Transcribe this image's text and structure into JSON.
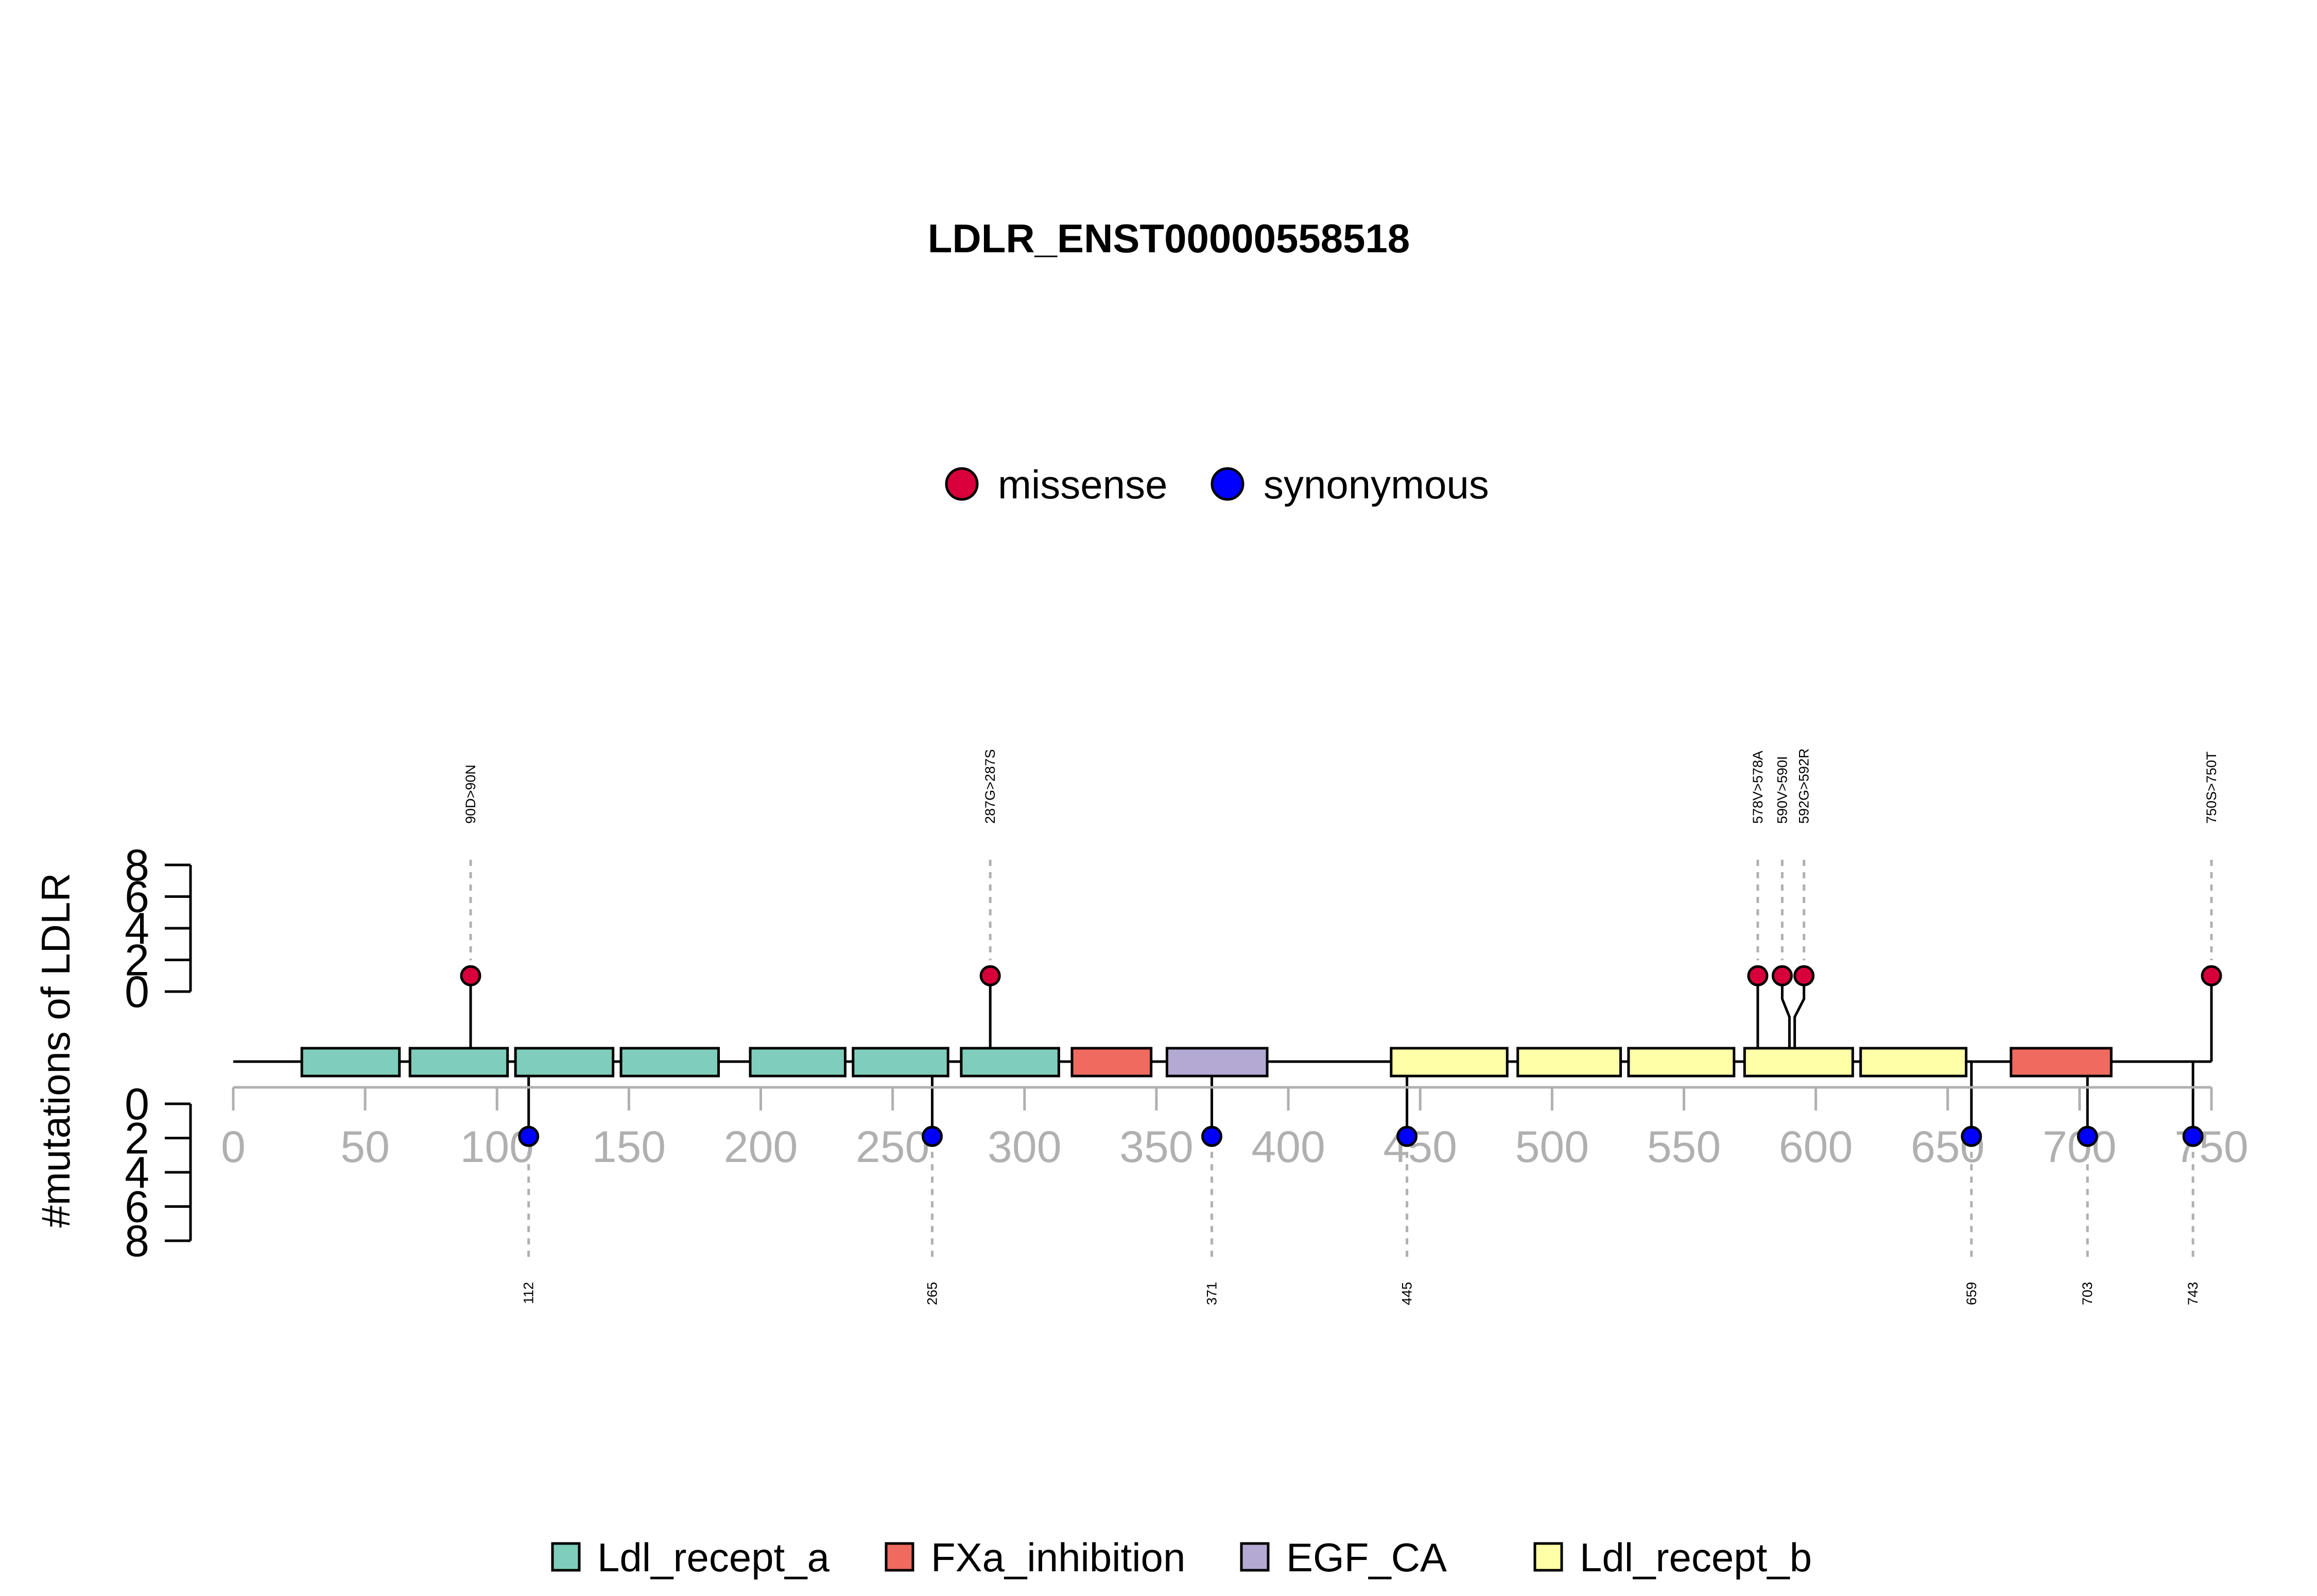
{
  "chart_data": {
    "type": "lollipop",
    "title": "LDLR_ENST00000558518",
    "ylabel": "#mutations of LDLR",
    "protein_length": 750,
    "xlim": [
      0,
      750
    ],
    "x_ticks": [
      0,
      50,
      100,
      150,
      200,
      250,
      300,
      350,
      400,
      450,
      500,
      550,
      600,
      650,
      700,
      750
    ],
    "y_ticks": [
      0,
      2,
      4,
      6,
      8
    ],
    "ylim": [
      0,
      8
    ],
    "legend_mutation": [
      {
        "name": "missense",
        "color": "#d7003a"
      },
      {
        "name": "synonymous",
        "color": "#0000ff"
      }
    ],
    "legend_domain": [
      {
        "name": "Ldl_recept_a",
        "color": "#7fcdbb"
      },
      {
        "name": "FXa_inhibition",
        "color": "#ef6a5f"
      },
      {
        "name": "EGF_CA",
        "color": "#b3a9d2"
      },
      {
        "name": "Ldl_recept_b",
        "color": "#ffffa8"
      }
    ],
    "domains": [
      {
        "type": "Ldl_recept_a",
        "start": 26,
        "end": 63
      },
      {
        "type": "Ldl_recept_a",
        "start": 67,
        "end": 104
      },
      {
        "type": "Ldl_recept_a",
        "start": 107,
        "end": 144
      },
      {
        "type": "Ldl_recept_a",
        "start": 147,
        "end": 184
      },
      {
        "type": "Ldl_recept_a",
        "start": 196,
        "end": 232
      },
      {
        "type": "Ldl_recept_a",
        "start": 235,
        "end": 271
      },
      {
        "type": "Ldl_recept_a",
        "start": 276,
        "end": 313
      },
      {
        "type": "FXa_inhibition",
        "start": 318,
        "end": 348
      },
      {
        "type": "EGF_CA",
        "start": 354,
        "end": 392
      },
      {
        "type": "Ldl_recept_b",
        "start": 439,
        "end": 483
      },
      {
        "type": "Ldl_recept_b",
        "start": 487,
        "end": 526
      },
      {
        "type": "Ldl_recept_b",
        "start": 529,
        "end": 569
      },
      {
        "type": "Ldl_recept_b",
        "start": 573,
        "end": 614
      },
      {
        "type": "Ldl_recept_b",
        "start": 617,
        "end": 657
      },
      {
        "type": "FXa_inhibition",
        "start": 674,
        "end": 712
      }
    ],
    "mutations_top": [
      {
        "pos": 90,
        "count": 1,
        "type": "missense",
        "label": "90D>90N"
      },
      {
        "pos": 287,
        "count": 1,
        "type": "missense",
        "label": "287G>287S"
      },
      {
        "pos": 578,
        "count": 1,
        "type": "missense",
        "label": "578V>578A"
      },
      {
        "pos": 590,
        "count": 1,
        "type": "missense",
        "label": "590V>590I"
      },
      {
        "pos": 592,
        "count": 1,
        "type": "missense",
        "label": "592G>592R"
      },
      {
        "pos": 750,
        "count": 1,
        "type": "missense",
        "label": "750S>750T"
      }
    ],
    "mutations_bottom": [
      {
        "pos": 112,
        "count": 1,
        "type": "synonymous",
        "label": "112"
      },
      {
        "pos": 265,
        "count": 1,
        "type": "synonymous",
        "label": "265"
      },
      {
        "pos": 371,
        "count": 1,
        "type": "synonymous",
        "label": "371"
      },
      {
        "pos": 445,
        "count": 1,
        "type": "synonymous",
        "label": "445"
      },
      {
        "pos": 659,
        "count": 1,
        "type": "synonymous",
        "label": "659"
      },
      {
        "pos": 703,
        "count": 1,
        "type": "synonymous",
        "label": "703"
      },
      {
        "pos": 743,
        "count": 1,
        "type": "synonymous",
        "label": "743"
      }
    ]
  }
}
